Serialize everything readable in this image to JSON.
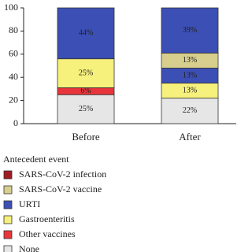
{
  "chart_data": {
    "type": "stacked-bar",
    "categories": [
      "Before",
      "After"
    ],
    "ylim": [
      0,
      100
    ],
    "yticks": [
      0,
      20,
      40,
      60,
      80,
      100
    ],
    "legend_title": "Antecedent event",
    "series": [
      {
        "name": "SARS-CoV-2 infection",
        "color": "#a11c22",
        "values": [
          null,
          null
        ]
      },
      {
        "name": "SARS-CoV-2 vaccine",
        "color": "#d8cf8e",
        "values": [
          null,
          13
        ],
        "value_labels": [
          null,
          "13%"
        ]
      },
      {
        "name": "URTI",
        "color": "#3c4fb4",
        "values": [
          44,
          39
        ],
        "value_labels": [
          "44%",
          "39%"
        ]
      },
      {
        "name": "Gastroenteritis",
        "color": "#f6f07c",
        "values": [
          25,
          13
        ],
        "value_labels": [
          "25%",
          "13%"
        ]
      },
      {
        "name": "Other vaccines",
        "color": "#e8353b",
        "values": [
          6,
          null
        ],
        "value_labels": [
          "6%",
          null
        ]
      },
      {
        "name": "None",
        "color": "#e6e6e6",
        "values": [
          25,
          22
        ],
        "value_labels": [
          "25%",
          "22%"
        ]
      },
      {
        "color": "#3c4fb4",
        "values": [
          null,
          13
        ],
        "value_labels": [
          null,
          "13%"
        ]
      }
    ]
  }
}
